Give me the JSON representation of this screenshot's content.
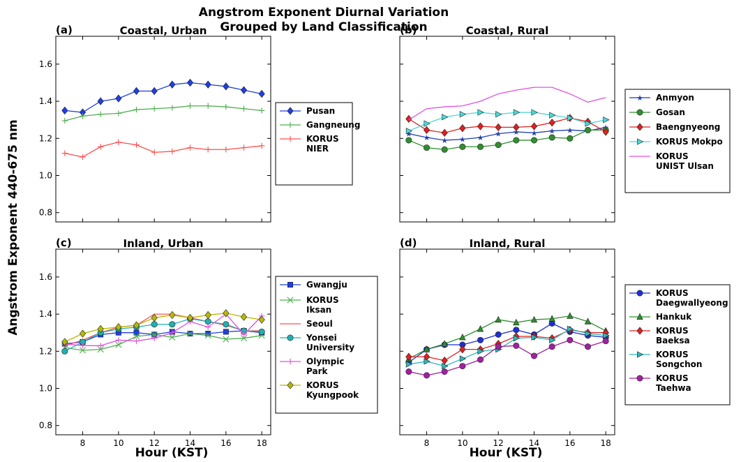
{
  "chart_data": {
    "type": "line",
    "title": "Angstrom Exponent Diurnal Variation",
    "subtitle": "Grouped by Land Classification",
    "ylabel": "Angstrom Exponent 440-675 nm",
    "xlabel": "Hour (KST)",
    "x": [
      7,
      8,
      9,
      10,
      11,
      12,
      13,
      14,
      15,
      16,
      17,
      18
    ],
    "xlim": [
      6.5,
      18.5
    ],
    "ylim": [
      0.75,
      1.75
    ],
    "xticks": [
      "8",
      "10",
      "12",
      "14",
      "16",
      "18"
    ],
    "yticks": [
      "0.8",
      "1.0",
      "1.2",
      "1.4",
      "1.6"
    ],
    "grid": false,
    "panels": [
      {
        "label": "(a)",
        "title": "Coastal, Urban",
        "legend_position": "right",
        "series": [
          {
            "name": "Pusan",
            "color": "#1f3fe0",
            "marker": "diamond",
            "values": [
              1.35,
              1.34,
              1.4,
              1.415,
              1.455,
              1.455,
              1.49,
              1.5,
              1.49,
              1.48,
              1.46,
              1.44
            ]
          },
          {
            "name": "Gangneung",
            "color": "#4fae4f",
            "marker": "plus",
            "values": [
              1.295,
              1.32,
              1.33,
              1.335,
              1.355,
              1.36,
              1.365,
              1.375,
              1.375,
              1.37,
              1.36,
              1.35
            ]
          },
          {
            "name": "KORUS\nNIER",
            "color": "#ff4f4f",
            "marker": "plus",
            "values": [
              1.12,
              1.1,
              1.155,
              1.18,
              1.165,
              1.125,
              1.13,
              1.15,
              1.14,
              1.14,
              1.15,
              1.16
            ]
          }
        ]
      },
      {
        "label": "(b)",
        "title": "Coastal, Rural",
        "legend_position": "right",
        "series": [
          {
            "name": "Anmyon",
            "color": "#1f3fae",
            "marker": "star",
            "values": [
              1.225,
              1.205,
              1.19,
              1.195,
              1.205,
              1.225,
              1.235,
              1.23,
              1.24,
              1.245,
              1.24,
              1.26
            ]
          },
          {
            "name": "Gosan",
            "color": "#2f8f2f",
            "marker": "circle",
            "values": [
              1.19,
              1.15,
              1.14,
              1.155,
              1.155,
              1.165,
              1.19,
              1.19,
              1.205,
              1.2,
              1.245,
              1.245
            ]
          },
          {
            "name": "Baengnyeong",
            "color": "#e02020",
            "marker": "diamond",
            "values": [
              1.305,
              1.245,
              1.23,
              1.255,
              1.265,
              1.26,
              1.26,
              1.265,
              1.285,
              1.31,
              1.29,
              1.235
            ]
          },
          {
            "name": "KORUS Mokpo",
            "color": "#4fd8d8",
            "marker": "triangle-right",
            "values": [
              1.24,
              1.28,
              1.315,
              1.33,
              1.34,
              1.33,
              1.34,
              1.34,
              1.325,
              1.31,
              1.28,
              1.3
            ]
          },
          {
            "name": "KORUS\nUNIST Ulsan",
            "color": "#e050e0",
            "marker": "none",
            "values": [
              1.3,
              1.36,
              1.37,
              1.375,
              1.4,
              1.44,
              1.46,
              1.475,
              1.475,
              1.44,
              1.395,
              1.42
            ]
          }
        ]
      },
      {
        "label": "(c)",
        "title": "Inland, Urban",
        "legend_position": "right",
        "series": [
          {
            "name": "Gwangju",
            "color": "#1f3fe0",
            "marker": "square",
            "values": [
              1.24,
              1.25,
              1.29,
              1.3,
              1.3,
              1.29,
              1.305,
              1.295,
              1.295,
              1.305,
              1.31,
              1.3
            ]
          },
          {
            "name": "KORUS\nIksan",
            "color": "#4fae4f",
            "marker": "x",
            "values": [
              1.22,
              1.205,
              1.21,
              1.235,
              1.28,
              1.29,
              1.275,
              1.295,
              1.285,
              1.265,
              1.27,
              1.285
            ]
          },
          {
            "name": "Seoul",
            "color": "#ff5050",
            "marker": "none",
            "values": [
              1.23,
              1.26,
              1.3,
              1.33,
              1.34,
              1.4,
              1.4,
              1.38,
              1.36,
              1.34,
              1.31,
              1.31
            ]
          },
          {
            "name": "Yonsei\nUniversity",
            "color": "#20b0b0",
            "marker": "circle",
            "values": [
              1.2,
              1.25,
              1.3,
              1.32,
              1.33,
              1.345,
              1.345,
              1.375,
              1.36,
              1.345,
              1.31,
              1.305
            ]
          },
          {
            "name": "Olympic\nPark",
            "color": "#e050e0",
            "marker": "plus",
            "values": [
              1.24,
              1.23,
              1.23,
              1.26,
              1.255,
              1.27,
              1.3,
              1.36,
              1.33,
              1.4,
              1.29,
              1.39
            ]
          },
          {
            "name": "KORUS\nKyungpook",
            "color": "#b8b800",
            "marker": "diamond",
            "values": [
              1.25,
              1.295,
              1.32,
              1.33,
              1.34,
              1.38,
              1.395,
              1.38,
              1.395,
              1.405,
              1.385,
              1.37
            ]
          }
        ]
      },
      {
        "label": "(d)",
        "title": "Inland, Rural",
        "legend_position": "right",
        "series": [
          {
            "name": "KORUS\nDaegwallyeong",
            "color": "#1f2fd0",
            "marker": "circle",
            "values": [
              1.14,
              1.21,
              1.235,
              1.235,
              1.26,
              1.29,
              1.315,
              1.29,
              1.35,
              1.305,
              1.285,
              1.275
            ]
          },
          {
            "name": "Hankuk",
            "color": "#2f8f2f",
            "marker": "triangle-up",
            "values": [
              1.16,
              1.21,
              1.24,
              1.275,
              1.32,
              1.37,
              1.355,
              1.37,
              1.375,
              1.39,
              1.36,
              1.31
            ]
          },
          {
            "name": "KORUS\nBaeksa",
            "color": "#e02020",
            "marker": "diamond",
            "values": [
              1.17,
              1.17,
              1.15,
              1.21,
              1.21,
              1.24,
              1.28,
              1.28,
              1.27,
              1.315,
              1.3,
              1.3
            ]
          },
          {
            "name": "KORUS\nSongchon",
            "color": "#30b8b8",
            "marker": "triangle-right",
            "values": [
              1.13,
              1.145,
              1.12,
              1.16,
              1.2,
              1.21,
              1.27,
              1.275,
              1.26,
              1.32,
              1.295,
              1.285
            ]
          },
          {
            "name": "KORUS\nTaehwa",
            "color": "#a020a0",
            "marker": "circle",
            "values": [
              1.09,
              1.07,
              1.09,
              1.12,
              1.155,
              1.225,
              1.23,
              1.175,
              1.225,
              1.26,
              1.225,
              1.255
            ]
          }
        ]
      }
    ]
  }
}
